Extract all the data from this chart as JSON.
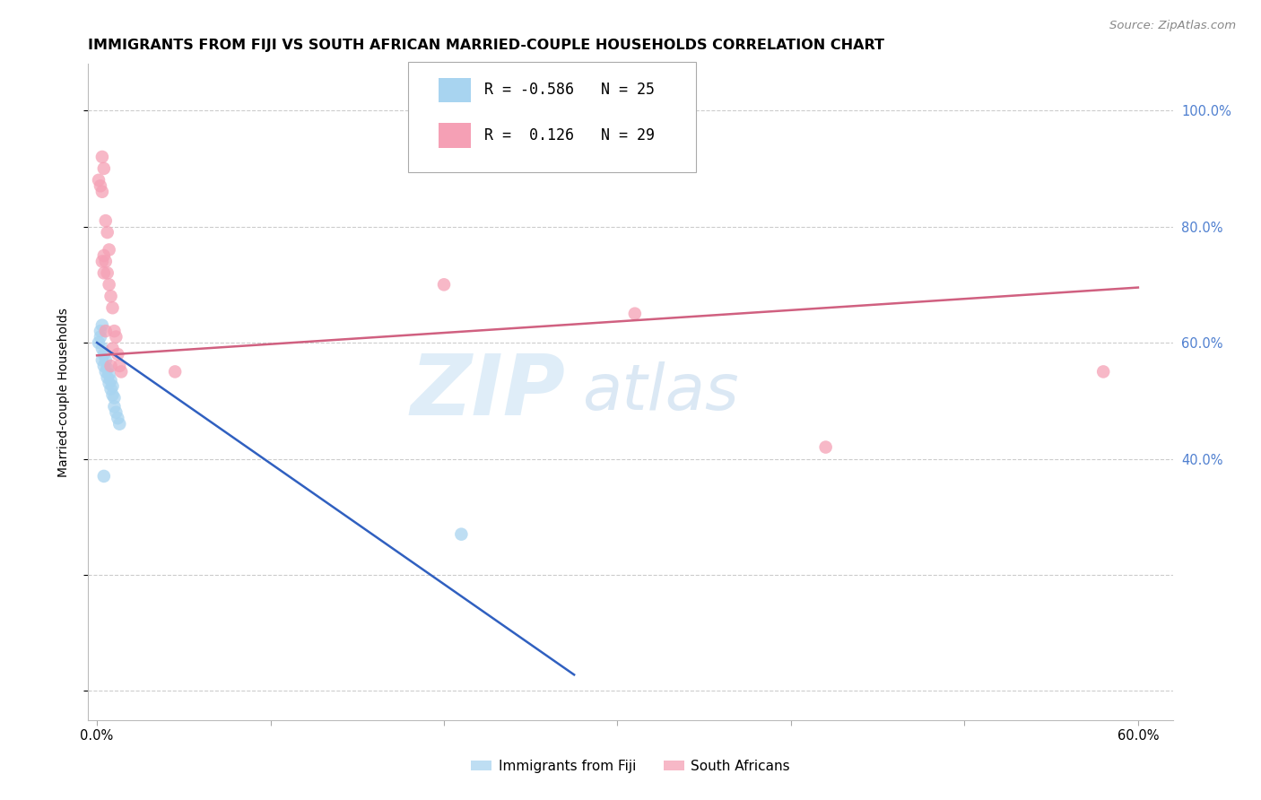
{
  "title": "IMMIGRANTS FROM FIJI VS SOUTH AFRICAN MARRIED-COUPLE HOUSEHOLDS CORRELATION CHART",
  "source": "Source: ZipAtlas.com",
  "ylabel_label": "Married-couple Households",
  "xlim": [
    -0.005,
    0.62
  ],
  "ylim": [
    -0.05,
    1.08
  ],
  "color_blue": "#a8d4f0",
  "color_pink": "#f5a0b5",
  "line_blue": "#3060c0",
  "line_pink": "#d06080",
  "fiji_x": [
    0.001,
    0.002,
    0.002,
    0.003,
    0.003,
    0.003,
    0.004,
    0.004,
    0.005,
    0.005,
    0.006,
    0.006,
    0.007,
    0.007,
    0.008,
    0.008,
    0.009,
    0.009,
    0.01,
    0.01,
    0.011,
    0.012,
    0.013,
    0.21,
    0.004
  ],
  "fiji_y": [
    0.6,
    0.62,
    0.61,
    0.63,
    0.59,
    0.57,
    0.58,
    0.56,
    0.57,
    0.55,
    0.555,
    0.54,
    0.545,
    0.53,
    0.535,
    0.52,
    0.525,
    0.51,
    0.505,
    0.49,
    0.48,
    0.47,
    0.46,
    0.27,
    0.37
  ],
  "sa_x": [
    0.001,
    0.002,
    0.003,
    0.004,
    0.005,
    0.006,
    0.007,
    0.008,
    0.009,
    0.01,
    0.011,
    0.012,
    0.013,
    0.014,
    0.045,
    0.003,
    0.004,
    0.005,
    0.006,
    0.007,
    0.008,
    0.009,
    0.003,
    0.004,
    0.005,
    0.2,
    0.31,
    0.58,
    0.42
  ],
  "sa_y": [
    0.88,
    0.87,
    0.86,
    0.75,
    0.74,
    0.72,
    0.7,
    0.68,
    0.66,
    0.62,
    0.61,
    0.58,
    0.56,
    0.55,
    0.55,
    0.92,
    0.9,
    0.81,
    0.79,
    0.76,
    0.56,
    0.59,
    0.74,
    0.72,
    0.62,
    0.7,
    0.65,
    0.55,
    0.42
  ],
  "fiji_line_x0": 0.0,
  "fiji_line_x1": 0.275,
  "fiji_line_y0": 0.6,
  "fiji_line_y1": 0.028,
  "sa_line_x0": 0.0,
  "sa_line_x1": 0.6,
  "sa_line_y0": 0.578,
  "sa_line_y1": 0.695,
  "title_fontsize": 11.5,
  "tick_fontsize": 10.5,
  "source_fontsize": 9.5,
  "background_color": "#ffffff",
  "grid_color": "#cccccc",
  "right_tick_color": "#5080d0",
  "wm_zip_color": "#b8d8f0",
  "wm_atlas_color": "#b0cce8",
  "wm_alpha": 0.45,
  "legend_r1": "R = -0.586",
  "legend_n1": "N = 25",
  "legend_r2": "R =  0.126",
  "legend_n2": "N = 29"
}
